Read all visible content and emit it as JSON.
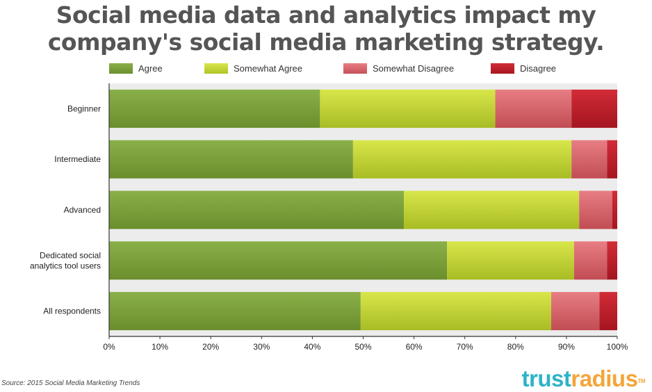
{
  "title_lines": [
    "Social media data and analytics impact my",
    "company's social media marketing strategy."
  ],
  "source": "Source: 2015 Social Media Marketing Trends",
  "brand": {
    "part1": "trust",
    "part2": "radius",
    "tm": "TM"
  },
  "colors": {
    "agree": "#7ba03a",
    "somewhat_agree": "#c8d836",
    "somewhat_disagree": "#d9666c",
    "disagree": "#c3202a",
    "brand_blue": "#2db3c7",
    "brand_orange": "#f4a53a"
  },
  "chart_data": {
    "type": "bar",
    "orientation": "horizontal",
    "stacked": true,
    "title": "Social media data and analytics impact my company's social media marketing strategy.",
    "categories": [
      [
        "Beginner"
      ],
      [
        "Intermediate"
      ],
      [
        "Advanced"
      ],
      [
        "Dedicated social",
        "analytics tool users"
      ],
      [
        "All respondents"
      ]
    ],
    "series": [
      {
        "name": "Agree",
        "color": "#7ba03a",
        "values": [
          41.5,
          48,
          58,
          66.5,
          49.5
        ]
      },
      {
        "name": "Somewhat Agree",
        "color": "#c8d836",
        "values": [
          34.5,
          43,
          34.5,
          25,
          37.5
        ]
      },
      {
        "name": "Somewhat Disagree",
        "color": "#d9666c",
        "values": [
          15,
          7,
          6.5,
          6.5,
          9.5
        ]
      },
      {
        "name": "Disagree",
        "color": "#c3202a",
        "values": [
          9,
          2,
          1,
          2,
          3.5
        ]
      }
    ],
    "xlim": [
      0,
      100
    ],
    "xticks": [
      "0%",
      "10%",
      "20%",
      "30%",
      "40%",
      "50%",
      "60%",
      "70%",
      "80%",
      "90%",
      "100%"
    ],
    "legend_position": "top"
  }
}
